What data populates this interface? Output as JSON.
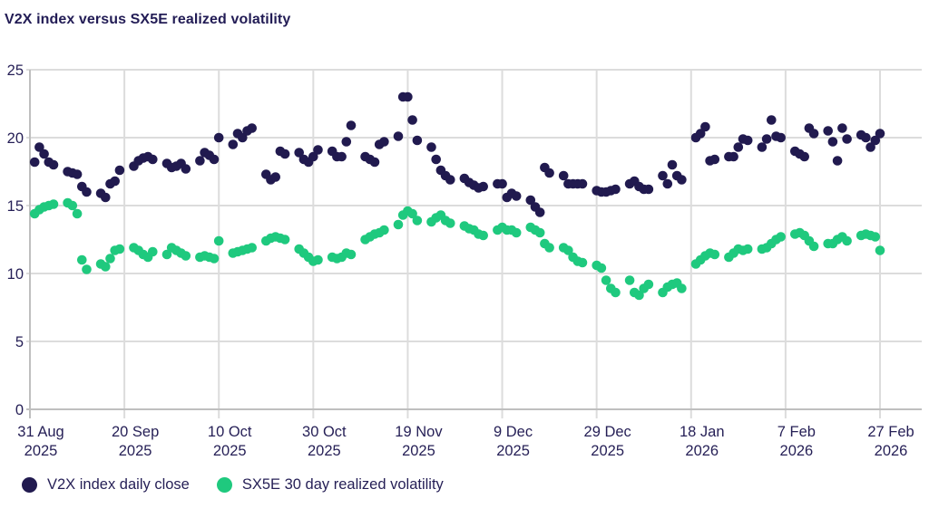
{
  "title": "V2X index versus SX5E realized volatility",
  "chart_data": {
    "type": "scatter",
    "title": "V2X index versus SX5E realized volatility",
    "grid": true,
    "legend_position": "bottom",
    "colors": {
      "grid": "#dcdcdc",
      "axis": "#bfbfbf",
      "text": "#251f56"
    },
    "y_axis": {
      "min": 0,
      "max": 25,
      "ticks": [
        0,
        5,
        10,
        15,
        20,
        25
      ]
    },
    "x_axis": {
      "domain_days": [
        0,
        189
      ],
      "ticks": [
        {
          "day": 0,
          "line1": "31 Aug",
          "line2": "2025"
        },
        {
          "day": 20,
          "line1": "20 Sep",
          "line2": "2025"
        },
        {
          "day": 40,
          "line1": "10 Oct",
          "line2": "2025"
        },
        {
          "day": 60,
          "line1": "30 Oct",
          "line2": "2025"
        },
        {
          "day": 80,
          "line1": "19 Nov",
          "line2": "2025"
        },
        {
          "day": 100,
          "line1": "9 Dec",
          "line2": "2025"
        },
        {
          "day": 120,
          "line1": "29 Dec",
          "line2": "2025"
        },
        {
          "day": 140,
          "line1": "18 Jan",
          "line2": "2026"
        },
        {
          "day": 160,
          "line1": "7 Feb",
          "line2": "2026"
        },
        {
          "day": 180,
          "line1": "27 Feb",
          "line2": "2026"
        }
      ]
    },
    "days": [
      1,
      2,
      3,
      4,
      5,
      8,
      9,
      10,
      11,
      12,
      15,
      16,
      17,
      18,
      19,
      22,
      23,
      24,
      25,
      26,
      29,
      30,
      31,
      32,
      33,
      36,
      37,
      38,
      39,
      40,
      43,
      44,
      45,
      46,
      47,
      50,
      51,
      52,
      53,
      54,
      57,
      58,
      59,
      60,
      61,
      64,
      65,
      66,
      67,
      68,
      71,
      72,
      73,
      74,
      75,
      78,
      79,
      80,
      81,
      82,
      85,
      86,
      87,
      88,
      89,
      92,
      93,
      94,
      95,
      96,
      99,
      100,
      101,
      102,
      103,
      106,
      107,
      108,
      109,
      110,
      113,
      114,
      115,
      116,
      117,
      120,
      121,
      122,
      123,
      124,
      127,
      128,
      129,
      130,
      131,
      134,
      135,
      136,
      137,
      138,
      141,
      142,
      143,
      144,
      145,
      148,
      149,
      150,
      151,
      152,
      155,
      156,
      157,
      158,
      159,
      162,
      163,
      164,
      165,
      166,
      169,
      170,
      171,
      172,
      173,
      176,
      177,
      178,
      179,
      180
    ],
    "series": [
      {
        "name": "V2X index daily close",
        "color": "#211a4f",
        "values": [
          18.2,
          19.3,
          18.8,
          18.2,
          18.0,
          17.5,
          17.4,
          17.3,
          16.4,
          16.0,
          15.9,
          15.6,
          16.6,
          16.8,
          17.6,
          17.9,
          18.3,
          18.5,
          18.6,
          18.4,
          18.1,
          17.8,
          17.9,
          18.1,
          17.7,
          18.3,
          18.9,
          18.7,
          18.4,
          20.0,
          19.5,
          20.3,
          20.0,
          20.5,
          20.7,
          17.3,
          16.9,
          17.1,
          19.0,
          18.8,
          18.9,
          18.4,
          18.2,
          18.6,
          19.1,
          19.0,
          18.6,
          18.6,
          19.7,
          20.9,
          18.6,
          18.4,
          18.2,
          19.5,
          19.7,
          20.1,
          23.0,
          23.0,
          21.3,
          19.8,
          19.3,
          18.4,
          17.6,
          17.2,
          16.9,
          17.0,
          16.7,
          16.5,
          16.3,
          16.4,
          16.6,
          16.6,
          15.6,
          15.9,
          15.7,
          15.4,
          14.9,
          14.5,
          17.8,
          17.4,
          17.2,
          16.6,
          16.6,
          16.6,
          16.6,
          16.1,
          16.0,
          16.0,
          16.1,
          16.2,
          16.6,
          16.8,
          16.4,
          16.2,
          16.2,
          17.2,
          16.6,
          18.0,
          17.2,
          16.9,
          20.0,
          20.3,
          20.8,
          18.3,
          18.4,
          18.6,
          18.6,
          19.3,
          19.9,
          19.8,
          19.3,
          19.9,
          21.3,
          20.1,
          20.0,
          19.0,
          18.8,
          18.6,
          20.7,
          20.3,
          20.5,
          19.7,
          18.3,
          20.7,
          19.9,
          20.2,
          20.0,
          19.3,
          19.8,
          20.3
        ]
      },
      {
        "name": "SX5E 30 day realized volatility",
        "color": "#1fc97e",
        "values": [
          14.4,
          14.7,
          14.9,
          15.0,
          15.1,
          15.2,
          15.0,
          14.4,
          11.0,
          10.3,
          10.7,
          10.5,
          11.1,
          11.7,
          11.8,
          11.9,
          11.7,
          11.4,
          11.2,
          11.6,
          11.4,
          11.9,
          11.7,
          11.5,
          11.3,
          11.2,
          11.3,
          11.2,
          11.1,
          12.4,
          11.5,
          11.6,
          11.7,
          11.8,
          11.9,
          12.4,
          12.6,
          12.7,
          12.6,
          12.5,
          11.8,
          11.5,
          11.2,
          10.9,
          11.0,
          11.2,
          11.1,
          11.2,
          11.5,
          11.4,
          12.5,
          12.7,
          12.9,
          13.0,
          13.2,
          13.6,
          14.3,
          14.6,
          14.4,
          13.9,
          13.8,
          14.1,
          14.3,
          13.9,
          13.7,
          13.5,
          13.3,
          13.2,
          12.9,
          12.8,
          13.2,
          13.4,
          13.2,
          13.2,
          13.0,
          13.4,
          13.2,
          13.0,
          12.2,
          11.9,
          11.9,
          11.7,
          11.2,
          10.9,
          10.8,
          10.6,
          10.4,
          9.5,
          8.9,
          8.6,
          9.5,
          8.6,
          8.4,
          8.9,
          9.2,
          8.6,
          9.0,
          9.2,
          9.3,
          8.9,
          10.7,
          11.0,
          11.3,
          11.5,
          11.4,
          11.2,
          11.5,
          11.8,
          11.7,
          11.8,
          11.8,
          11.9,
          12.2,
          12.5,
          12.7,
          12.9,
          13.0,
          12.8,
          12.4,
          12.0,
          12.2,
          12.2,
          12.5,
          12.7,
          12.4,
          12.8,
          12.9,
          12.8,
          12.7,
          11.7
        ]
      }
    ]
  },
  "legend": {
    "items": [
      {
        "label": "V2X index daily close",
        "color": "#211a4f"
      },
      {
        "label": "SX5E 30 day realized volatility",
        "color": "#1fc97e"
      }
    ]
  }
}
